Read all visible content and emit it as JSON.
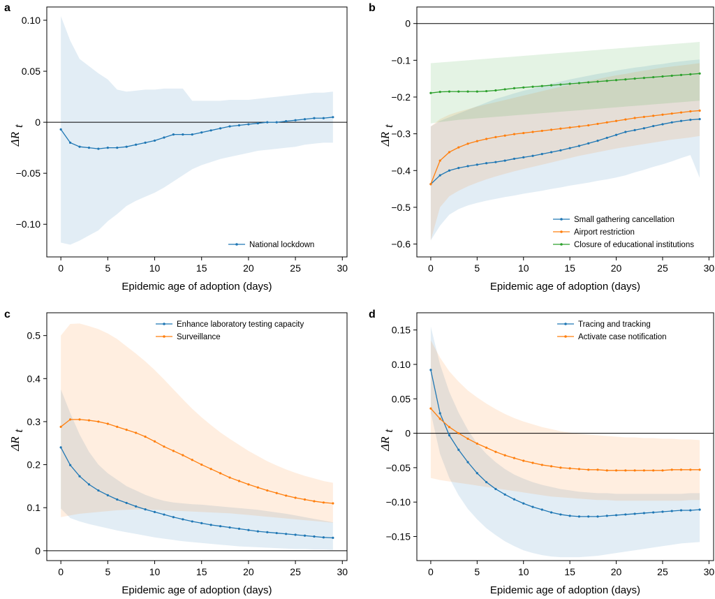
{
  "colors": {
    "blue": "#1f77b4",
    "orange": "#ff7f0e",
    "green": "#2ca02c",
    "axis": "#000000"
  },
  "chart_data": [
    {
      "panel": "a",
      "type": "line",
      "xlabel": "Epidemic age of adoption (days)",
      "ylabel_main": "ΔR",
      "ylabel_sub": "t",
      "xlim": [
        -1.5,
        30.5
      ],
      "ylim": [
        -0.132,
        0.113
      ],
      "xticks": [
        0,
        5,
        10,
        15,
        20,
        25,
        30
      ],
      "yticks": [
        -0.1,
        -0.05,
        0,
        0.05,
        0.1
      ],
      "ytick_labels": [
        "−0.10",
        "−0.05",
        "0",
        "0.05",
        "0.10"
      ],
      "zero_line": true,
      "legend_position": "bottom-right",
      "x": [
        0,
        1,
        2,
        3,
        4,
        5,
        6,
        7,
        8,
        9,
        10,
        11,
        12,
        13,
        14,
        15,
        16,
        17,
        18,
        19,
        20,
        21,
        22,
        23,
        24,
        25,
        26,
        27,
        28,
        29
      ],
      "series": [
        {
          "name": "National lockdown",
          "color": "blue",
          "values": [
            -0.007,
            -0.02,
            -0.024,
            -0.025,
            -0.026,
            -0.025,
            -0.025,
            -0.024,
            -0.022,
            -0.02,
            -0.018,
            -0.015,
            -0.012,
            -0.012,
            -0.012,
            -0.01,
            -0.008,
            -0.006,
            -0.004,
            -0.003,
            -0.002,
            -0.001,
            0.0,
            0.0,
            0.001,
            0.002,
            0.003,
            0.004,
            0.004,
            0.005
          ],
          "upper": [
            0.104,
            0.08,
            0.062,
            0.055,
            0.048,
            0.042,
            0.032,
            0.03,
            0.031,
            0.032,
            0.032,
            0.033,
            0.033,
            0.033,
            0.021,
            0.021,
            0.021,
            0.021,
            0.022,
            0.022,
            0.022,
            0.023,
            0.024,
            0.025,
            0.026,
            0.027,
            0.028,
            0.029,
            0.029,
            0.03
          ],
          "lower": [
            -0.118,
            -0.12,
            -0.116,
            -0.111,
            -0.106,
            -0.097,
            -0.09,
            -0.082,
            -0.077,
            -0.073,
            -0.069,
            -0.064,
            -0.058,
            -0.052,
            -0.046,
            -0.042,
            -0.039,
            -0.036,
            -0.034,
            -0.032,
            -0.03,
            -0.028,
            -0.027,
            -0.026,
            -0.025,
            -0.024,
            -0.022,
            -0.021,
            -0.02,
            -0.02
          ]
        }
      ]
    },
    {
      "panel": "b",
      "type": "line",
      "xlabel": "Epidemic age of adoption (days)",
      "ylabel_main": "ΔR",
      "ylabel_sub": "t",
      "xlim": [
        -1.5,
        30.5
      ],
      "ylim": [
        -0.635,
        0.045
      ],
      "xticks": [
        0,
        5,
        10,
        15,
        20,
        25,
        30
      ],
      "yticks": [
        -0.6,
        -0.5,
        -0.4,
        -0.3,
        -0.2,
        -0.1,
        0
      ],
      "ytick_labels": [
        "−0.6",
        "−0.5",
        "−0.4",
        "−0.3",
        "−0.2",
        "−0.1",
        "0"
      ],
      "zero_line": true,
      "legend_position": "bottom-right",
      "x": [
        0,
        1,
        2,
        3,
        4,
        5,
        6,
        7,
        8,
        9,
        10,
        11,
        12,
        13,
        14,
        15,
        16,
        17,
        18,
        19,
        20,
        21,
        22,
        23,
        24,
        25,
        26,
        27,
        28,
        29
      ],
      "series": [
        {
          "name": "Small gathering cancellation",
          "color": "blue",
          "values": [
            -0.437,
            -0.413,
            -0.4,
            -0.393,
            -0.388,
            -0.384,
            -0.38,
            -0.377,
            -0.373,
            -0.368,
            -0.364,
            -0.36,
            -0.355,
            -0.35,
            -0.345,
            -0.339,
            -0.333,
            -0.326,
            -0.319,
            -0.311,
            -0.303,
            -0.295,
            -0.29,
            -0.285,
            -0.279,
            -0.274,
            -0.269,
            -0.265,
            -0.262,
            -0.26
          ],
          "upper": [
            -0.28,
            -0.265,
            -0.255,
            -0.245,
            -0.235,
            -0.225,
            -0.215,
            -0.205,
            -0.198,
            -0.19,
            -0.183,
            -0.177,
            -0.17,
            -0.164,
            -0.158,
            -0.152,
            -0.147,
            -0.142,
            -0.137,
            -0.133,
            -0.128,
            -0.124,
            -0.12,
            -0.117,
            -0.113,
            -0.11,
            -0.106,
            -0.103,
            -0.1,
            -0.098
          ],
          "lower": [
            -0.59,
            -0.55,
            -0.52,
            -0.505,
            -0.495,
            -0.488,
            -0.482,
            -0.477,
            -0.472,
            -0.468,
            -0.463,
            -0.459,
            -0.455,
            -0.45,
            -0.446,
            -0.441,
            -0.437,
            -0.433,
            -0.428,
            -0.424,
            -0.419,
            -0.413,
            -0.405,
            -0.398,
            -0.39,
            -0.383,
            -0.375,
            -0.366,
            -0.358,
            -0.42
          ]
        },
        {
          "name": "Airport restriction",
          "color": "orange",
          "values": [
            -0.437,
            -0.373,
            -0.35,
            -0.337,
            -0.327,
            -0.32,
            -0.314,
            -0.309,
            -0.305,
            -0.301,
            -0.298,
            -0.295,
            -0.292,
            -0.289,
            -0.286,
            -0.283,
            -0.28,
            -0.277,
            -0.273,
            -0.269,
            -0.265,
            -0.261,
            -0.257,
            -0.254,
            -0.251,
            -0.248,
            -0.245,
            -0.242,
            -0.239,
            -0.237
          ],
          "upper": [
            -0.28,
            -0.26,
            -0.248,
            -0.24,
            -0.233,
            -0.226,
            -0.22,
            -0.214,
            -0.208,
            -0.202,
            -0.196,
            -0.19,
            -0.184,
            -0.178,
            -0.172,
            -0.166,
            -0.161,
            -0.156,
            -0.151,
            -0.146,
            -0.141,
            -0.137,
            -0.132,
            -0.128,
            -0.124,
            -0.12,
            -0.117,
            -0.114,
            -0.111,
            -0.108
          ],
          "lower": [
            -0.59,
            -0.5,
            -0.47,
            -0.455,
            -0.443,
            -0.433,
            -0.424,
            -0.416,
            -0.409,
            -0.402,
            -0.396,
            -0.39,
            -0.384,
            -0.378,
            -0.372,
            -0.366,
            -0.36,
            -0.355,
            -0.35,
            -0.345,
            -0.34,
            -0.336,
            -0.332,
            -0.328,
            -0.324,
            -0.32,
            -0.316,
            -0.313,
            -0.31,
            -0.306
          ]
        },
        {
          "name": "Closure of educational institutions",
          "color": "green",
          "values": [
            -0.189,
            -0.186,
            -0.185,
            -0.185,
            -0.185,
            -0.185,
            -0.184,
            -0.182,
            -0.179,
            -0.176,
            -0.174,
            -0.172,
            -0.17,
            -0.168,
            -0.166,
            -0.164,
            -0.162,
            -0.16,
            -0.158,
            -0.156,
            -0.154,
            -0.152,
            -0.15,
            -0.148,
            -0.146,
            -0.144,
            -0.142,
            -0.14,
            -0.138,
            -0.136
          ],
          "upper": [
            -0.108,
            -0.106,
            -0.104,
            -0.102,
            -0.1,
            -0.098,
            -0.096,
            -0.094,
            -0.092,
            -0.09,
            -0.088,
            -0.086,
            -0.084,
            -0.082,
            -0.08,
            -0.078,
            -0.076,
            -0.074,
            -0.072,
            -0.07,
            -0.068,
            -0.066,
            -0.064,
            -0.062,
            -0.06,
            -0.058,
            -0.056,
            -0.054,
            -0.052,
            -0.05
          ],
          "lower": [
            -0.272,
            -0.268,
            -0.265,
            -0.262,
            -0.26,
            -0.258,
            -0.256,
            -0.254,
            -0.252,
            -0.25,
            -0.248,
            -0.246,
            -0.244,
            -0.242,
            -0.24,
            -0.238,
            -0.236,
            -0.234,
            -0.232,
            -0.23,
            -0.228,
            -0.226,
            -0.224,
            -0.222,
            -0.22,
            -0.218,
            -0.216,
            -0.214,
            -0.212,
            -0.21
          ]
        }
      ]
    },
    {
      "panel": "c",
      "type": "line",
      "xlabel": "Epidemic age of adoption (days)",
      "ylabel_main": "ΔR",
      "ylabel_sub": "t",
      "xlim": [
        -1.5,
        30.5
      ],
      "ylim": [
        -0.023,
        0.553
      ],
      "xticks": [
        0,
        5,
        10,
        15,
        20,
        25,
        30
      ],
      "yticks": [
        0,
        0.1,
        0.2,
        0.3,
        0.4,
        0.5
      ],
      "ytick_labels": [
        "0",
        "0.1",
        "0.2",
        "0.3",
        "0.4",
        "0.5"
      ],
      "zero_line": true,
      "legend_position": "top-right",
      "x": [
        0,
        1,
        2,
        3,
        4,
        5,
        6,
        7,
        8,
        9,
        10,
        11,
        12,
        13,
        14,
        15,
        16,
        17,
        18,
        19,
        20,
        21,
        22,
        23,
        24,
        25,
        26,
        27,
        28,
        29
      ],
      "series": [
        {
          "name": "Enhance laboratory testing capacity",
          "color": "blue",
          "values": [
            0.24,
            0.199,
            0.173,
            0.154,
            0.14,
            0.129,
            0.119,
            0.111,
            0.103,
            0.096,
            0.09,
            0.084,
            0.078,
            0.073,
            0.068,
            0.064,
            0.06,
            0.057,
            0.054,
            0.051,
            0.048,
            0.045,
            0.043,
            0.041,
            0.039,
            0.037,
            0.035,
            0.033,
            0.031,
            0.03
          ],
          "upper": [
            0.375,
            0.32,
            0.27,
            0.23,
            0.2,
            0.18,
            0.165,
            0.15,
            0.14,
            0.13,
            0.122,
            0.116,
            0.112,
            0.11,
            0.108,
            0.107,
            0.105,
            0.103,
            0.101,
            0.099,
            0.097,
            0.095,
            0.092,
            0.089,
            0.086,
            0.082,
            0.078,
            0.074,
            0.07,
            0.066
          ],
          "lower": [
            0.098,
            0.076,
            0.068,
            0.062,
            0.057,
            0.052,
            0.047,
            0.043,
            0.039,
            0.035,
            0.031,
            0.028,
            0.025,
            0.022,
            0.02,
            0.018,
            0.016,
            0.014,
            0.012,
            0.01,
            0.009,
            0.008,
            0.007,
            0.006,
            0.005,
            0.004,
            0.004,
            0.003,
            0.003,
            0.002
          ]
        },
        {
          "name": "Surveillance",
          "color": "orange",
          "values": [
            0.288,
            0.305,
            0.305,
            0.303,
            0.3,
            0.295,
            0.288,
            0.281,
            0.274,
            0.265,
            0.254,
            0.242,
            0.232,
            0.222,
            0.211,
            0.2,
            0.19,
            0.18,
            0.17,
            0.162,
            0.154,
            0.147,
            0.14,
            0.134,
            0.128,
            0.123,
            0.119,
            0.115,
            0.112,
            0.11
          ],
          "upper": [
            0.5,
            0.527,
            0.528,
            0.522,
            0.515,
            0.505,
            0.492,
            0.475,
            0.458,
            0.44,
            0.42,
            0.398,
            0.375,
            0.352,
            0.33,
            0.31,
            0.292,
            0.275,
            0.26,
            0.246,
            0.232,
            0.22,
            0.208,
            0.198,
            0.189,
            0.181,
            0.174,
            0.168,
            0.162,
            0.158
          ],
          "lower": [
            0.078,
            0.082,
            0.086,
            0.088,
            0.09,
            0.092,
            0.094,
            0.095,
            0.096,
            0.096,
            0.095,
            0.094,
            0.093,
            0.092,
            0.091,
            0.09,
            0.089,
            0.088,
            0.087,
            0.085,
            0.083,
            0.081,
            0.079,
            0.077,
            0.075,
            0.073,
            0.071,
            0.069,
            0.067,
            0.065
          ]
        }
      ]
    },
    {
      "panel": "d",
      "type": "line",
      "xlabel": "Epidemic age of adoption (days)",
      "ylabel_main": "ΔR",
      "ylabel_sub": "t",
      "xlim": [
        -1.5,
        30.5
      ],
      "ylim": [
        -0.185,
        0.175
      ],
      "xticks": [
        0,
        5,
        10,
        15,
        20,
        25,
        30
      ],
      "yticks": [
        -0.15,
        -0.1,
        -0.05,
        0,
        0.05,
        0.1,
        0.15
      ],
      "ytick_labels": [
        "−0.15",
        "−0.10",
        "−0.05",
        "0",
        "0.05",
        "0.10",
        "0.15"
      ],
      "zero_line": true,
      "legend_position": "top-right",
      "x": [
        0,
        1,
        2,
        3,
        4,
        5,
        6,
        7,
        8,
        9,
        10,
        11,
        12,
        13,
        14,
        15,
        16,
        17,
        18,
        19,
        20,
        21,
        22,
        23,
        24,
        25,
        26,
        27,
        28,
        29
      ],
      "series": [
        {
          "name": "Tracing and tracking",
          "color": "blue",
          "values": [
            0.092,
            0.029,
            -0.003,
            -0.024,
            -0.042,
            -0.058,
            -0.071,
            -0.081,
            -0.089,
            -0.096,
            -0.102,
            -0.107,
            -0.111,
            -0.115,
            -0.118,
            -0.12,
            -0.121,
            -0.121,
            -0.121,
            -0.12,
            -0.119,
            -0.118,
            -0.117,
            -0.116,
            -0.115,
            -0.114,
            -0.113,
            -0.112,
            -0.112,
            -0.111
          ],
          "upper": [
            0.155,
            0.1,
            0.06,
            0.03,
            0.005,
            -0.015,
            -0.03,
            -0.042,
            -0.052,
            -0.06,
            -0.066,
            -0.071,
            -0.075,
            -0.078,
            -0.081,
            -0.083,
            -0.085,
            -0.086,
            -0.087,
            -0.087,
            -0.088,
            -0.088,
            -0.088,
            -0.088,
            -0.088,
            -0.088,
            -0.088,
            -0.088,
            -0.087,
            -0.087
          ],
          "lower": [
            0.03,
            -0.03,
            -0.065,
            -0.09,
            -0.11,
            -0.125,
            -0.138,
            -0.148,
            -0.157,
            -0.164,
            -0.17,
            -0.174,
            -0.177,
            -0.179,
            -0.18,
            -0.18,
            -0.18,
            -0.179,
            -0.178,
            -0.176,
            -0.174,
            -0.172,
            -0.17,
            -0.168,
            -0.166,
            -0.164,
            -0.162,
            -0.16,
            -0.159,
            -0.158
          ]
        },
        {
          "name": "Activate case notification",
          "color": "orange",
          "values": [
            0.036,
            0.021,
            0.009,
            0.0,
            -0.008,
            -0.015,
            -0.021,
            -0.027,
            -0.032,
            -0.036,
            -0.04,
            -0.043,
            -0.046,
            -0.048,
            -0.05,
            -0.051,
            -0.052,
            -0.053,
            -0.053,
            -0.054,
            -0.054,
            -0.054,
            -0.054,
            -0.054,
            -0.054,
            -0.054,
            -0.053,
            -0.053,
            -0.053,
            -0.053
          ],
          "upper": [
            0.135,
            0.11,
            0.09,
            0.075,
            0.062,
            0.052,
            0.043,
            0.035,
            0.028,
            0.022,
            0.017,
            0.013,
            0.009,
            0.006,
            0.003,
            0.001,
            -0.001,
            -0.002,
            -0.003,
            -0.004,
            -0.005,
            -0.006,
            -0.006,
            -0.007,
            -0.007,
            -0.008,
            -0.008,
            -0.009,
            -0.009,
            -0.01
          ],
          "lower": [
            -0.065,
            -0.068,
            -0.07,
            -0.072,
            -0.074,
            -0.076,
            -0.078,
            -0.08,
            -0.082,
            -0.084,
            -0.086,
            -0.088,
            -0.09,
            -0.092,
            -0.093,
            -0.094,
            -0.095,
            -0.096,
            -0.097,
            -0.097,
            -0.098,
            -0.098,
            -0.098,
            -0.098,
            -0.098,
            -0.098,
            -0.098,
            -0.098,
            -0.097,
            -0.097
          ]
        }
      ]
    }
  ]
}
